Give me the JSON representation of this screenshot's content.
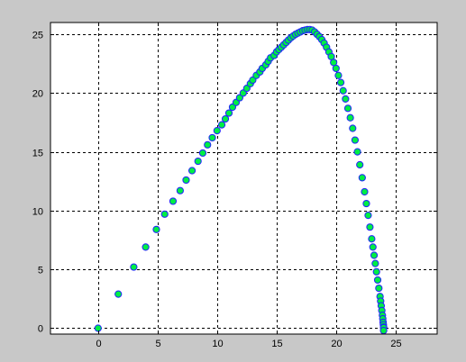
{
  "figure": {
    "background_color": "#c8c8c8",
    "axes_background_color": "#ffffff",
    "grid": true,
    "grid_style": "dashed",
    "grid_color": "#000000"
  },
  "chart_data": {
    "type": "scatter",
    "title": "",
    "xlabel": "",
    "ylabel": "",
    "xlim": [
      -4,
      28.5
    ],
    "ylim": [
      -0.5,
      26
    ],
    "xticks": [
      0,
      5,
      10,
      15,
      20,
      25
    ],
    "yticks": [
      0,
      5,
      10,
      15,
      20,
      25
    ],
    "xtick_labels": [
      "0",
      "5",
      "10",
      "15",
      "20",
      "25"
    ],
    "ytick_labels": [
      "0",
      "5",
      "10",
      "15",
      "20",
      "25"
    ],
    "grid": true,
    "legend": null,
    "series": [
      {
        "marker": "circle",
        "marker_face_color": "#00ee44",
        "marker_edge_color": "#2222ff",
        "x": [
          0,
          1.7,
          3.0,
          4.0,
          4.9,
          5.6,
          6.3,
          6.9,
          7.4,
          7.9,
          8.4,
          8.8,
          9.2,
          9.6,
          10.0,
          10.4,
          10.7,
          11.0,
          11.3,
          11.6,
          11.9,
          12.2,
          12.5,
          12.8,
          13.0,
          13.3,
          13.6,
          13.8,
          14.1,
          14.3,
          14.5,
          14.8,
          15.0,
          15.2,
          15.4,
          15.6,
          15.8,
          16.0,
          16.2,
          16.4,
          16.6,
          16.8,
          17.0,
          17.2,
          17.4,
          17.6,
          17.8,
          18.0,
          18.2,
          18.4,
          18.6,
          18.8,
          19.0,
          19.2,
          19.4,
          19.6,
          19.8,
          20.0,
          20.2,
          20.4,
          20.6,
          20.8,
          21.0,
          21.2,
          21.4,
          21.6,
          21.8,
          22.0,
          22.2,
          22.4,
          22.55,
          22.7,
          22.85,
          23.0,
          23.1,
          23.2,
          23.3,
          23.4,
          23.5,
          23.6,
          23.7,
          23.75,
          23.8,
          23.85,
          23.9,
          23.93,
          23.96,
          23.98,
          24.0,
          24.0,
          24.0
        ],
        "y": [
          0,
          2.9,
          5.2,
          6.9,
          8.4,
          9.7,
          10.8,
          11.7,
          12.6,
          13.4,
          14.2,
          14.9,
          15.6,
          16.2,
          16.8,
          17.3,
          17.8,
          18.3,
          18.8,
          19.2,
          19.6,
          20.0,
          20.4,
          20.8,
          21.1,
          21.5,
          21.8,
          22.1,
          22.4,
          22.7,
          23.0,
          23.2,
          23.5,
          23.7,
          23.9,
          24.1,
          24.3,
          24.5,
          24.7,
          24.85,
          25.0,
          25.1,
          25.2,
          25.3,
          25.35,
          25.4,
          25.4,
          25.35,
          25.2,
          25.0,
          24.8,
          24.55,
          24.25,
          23.9,
          23.5,
          23.1,
          22.6,
          22.1,
          21.5,
          20.9,
          20.2,
          19.5,
          18.7,
          17.9,
          17.0,
          16.0,
          15.0,
          13.9,
          12.8,
          11.6,
          10.6,
          9.6,
          8.6,
          7.6,
          6.9,
          6.2,
          5.5,
          4.8,
          4.1,
          3.4,
          2.7,
          2.3,
          1.9,
          1.5,
          1.1,
          0.8,
          0.5,
          0.3,
          0.1,
          0.05,
          -0.2
        ]
      }
    ]
  }
}
